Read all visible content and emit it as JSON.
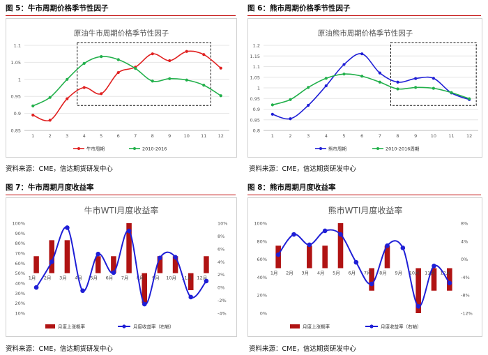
{
  "captions": {
    "fig5": "图 5：牛市周期价格季节性因子",
    "fig6": "图 6：熊市周期价格季节性因子",
    "fig7": "图 7：牛市周期月度收益率",
    "fig8": "图 8：熊市周期月度收益率"
  },
  "sources": {
    "s5": "资料来源：CME，信达期货研发中心",
    "s6": "资料来源：CME，信达期货研发中心",
    "s7": "资料来源：CME，信达期货研发中心",
    "s8": "资料来源：CME，信达期货研发中心"
  },
  "colors": {
    "caption_rule": "#c00000",
    "red": "#e02020",
    "green": "#22b04b",
    "blue": "#1f1fd6",
    "bar": "#b01313"
  },
  "chart_data": [
    {
      "id": "c5",
      "type": "line",
      "title": "原油牛市周期价格季节性因子",
      "x": [
        1,
        2,
        3,
        4,
        5,
        6,
        7,
        8,
        9,
        10,
        11,
        12
      ],
      "ylim": [
        0.85,
        1.1
      ],
      "yticks": [
        "0.85",
        "0.9",
        "0.95",
        "1",
        "1.05",
        "1.1"
      ],
      "series": [
        {
          "name": "牛市周期",
          "color": "#e02020",
          "values": [
            0.895,
            0.88,
            0.943,
            0.976,
            0.958,
            1.02,
            1.036,
            1.075,
            1.055,
            1.082,
            1.073,
            1.033
          ]
        },
        {
          "name": "2010-2016",
          "color": "#22b04b",
          "values": [
            0.922,
            0.947,
            1.0,
            1.047,
            1.067,
            1.058,
            1.032,
            0.995,
            1.002,
            0.998,
            0.983,
            0.952
          ]
        }
      ],
      "highlight_box": {
        "x_from": 4,
        "x_to": 11
      }
    },
    {
      "id": "c6",
      "type": "line",
      "title": "原油熊市周期价格季节性因子",
      "x": [
        1,
        2,
        3,
        4,
        5,
        6,
        7,
        8,
        9,
        10,
        11,
        12
      ],
      "ylim": [
        0.8,
        1.2
      ],
      "yticks": [
        "0.8",
        "0.85",
        "0.9",
        "0.95",
        "1",
        "1.05",
        "1.1",
        "1.15",
        "1.2"
      ],
      "series": [
        {
          "name": "熊市周期",
          "color": "#1f1fd6",
          "values": [
            0.876,
            0.855,
            0.918,
            1.01,
            1.11,
            1.16,
            1.07,
            1.027,
            1.044,
            1.045,
            0.976,
            0.945
          ]
        },
        {
          "name": "2010-2016周期",
          "color": "#22b04b",
          "values": [
            0.92,
            0.945,
            1.002,
            1.045,
            1.065,
            1.055,
            1.027,
            0.995,
            1.002,
            0.998,
            0.978,
            0.949
          ]
        }
      ],
      "highlight_box": {
        "x_from": 8,
        "x_to": 12
      }
    },
    {
      "id": "c7",
      "type": "bar",
      "title": "牛市WTI月度收益率",
      "categories": [
        "1月",
        "2月",
        "3月",
        "4月",
        "5月",
        "6月",
        "7月",
        "8月",
        "9月",
        "10月",
        "11月",
        "12月"
      ],
      "left_axis": {
        "ylim": [
          10,
          100
        ],
        "ticks": [
          "10%",
          "20%",
          "30%",
          "40%",
          "50%",
          "60%",
          "70%",
          "80%",
          "90%",
          "100%"
        ]
      },
      "right_axis": {
        "ylim": [
          -4,
          10
        ],
        "ticks": [
          "-4%",
          "-2%",
          "0%",
          "2%",
          "4%",
          "6%",
          "8%",
          "10%"
        ]
      },
      "series": [
        {
          "name": "月度上涨概率",
          "color": "#b01313",
          "type": "bar",
          "axis": "left",
          "bar_range": [
            [
              50,
              67
            ],
            [
              50,
              83
            ],
            [
              50,
              83
            ],
            [
              50,
              50
            ],
            [
              50,
              67
            ],
            [
              50,
              67
            ],
            [
              50,
              100
            ],
            [
              20,
              50
            ],
            [
              50,
              67
            ],
            [
              50,
              67
            ],
            [
              33,
              50
            ],
            [
              50,
              67
            ]
          ]
        },
        {
          "name": "月度收益率（右轴）",
          "color": "#1f1fd6",
          "type": "line",
          "axis": "right",
          "values": [
            0.0,
            4.0,
            9.3,
            -0.5,
            5.2,
            2.3,
            8.8,
            -2.6,
            4.6,
            4.7,
            -1.5,
            1.0
          ]
        }
      ]
    },
    {
      "id": "c8",
      "type": "bar",
      "title": "熊市WTI月度收益率",
      "categories": [
        "1月",
        "2月",
        "3月",
        "4月",
        "5月",
        "6月",
        "7月",
        "8月",
        "9月",
        "10月",
        "11月",
        "12月"
      ],
      "left_axis": {
        "ylim": [
          0,
          100
        ],
        "ticks": [
          "0%",
          "20%",
          "40%",
          "60%",
          "80%",
          "100%"
        ]
      },
      "right_axis": {
        "ylim": [
          -12,
          8
        ],
        "ticks": [
          "-12%",
          "-8%",
          "-4%",
          "0%",
          "4%",
          "8%"
        ]
      },
      "series": [
        {
          "name": "月度上涨概率",
          "color": "#b01313",
          "type": "bar",
          "axis": "left",
          "bar_range": [
            [
              50,
              75
            ],
            [
              50,
              50
            ],
            [
              50,
              75
            ],
            [
              50,
              75
            ],
            [
              50,
              100
            ],
            [
              50,
              50
            ],
            [
              25,
              50
            ],
            [
              50,
              75
            ],
            [
              50,
              50
            ],
            [
              0,
              50
            ],
            [
              25,
              50
            ],
            [
              25,
              50
            ]
          ]
        },
        {
          "name": "月度收益率（右轴）",
          "color": "#1f1fd6",
          "type": "line",
          "axis": "right",
          "values": [
            1.0,
            5.5,
            3.2,
            6.3,
            5.5,
            -0.7,
            -5.5,
            3.0,
            2.5,
            -10.5,
            -1.5,
            -5.3
          ]
        }
      ]
    }
  ]
}
